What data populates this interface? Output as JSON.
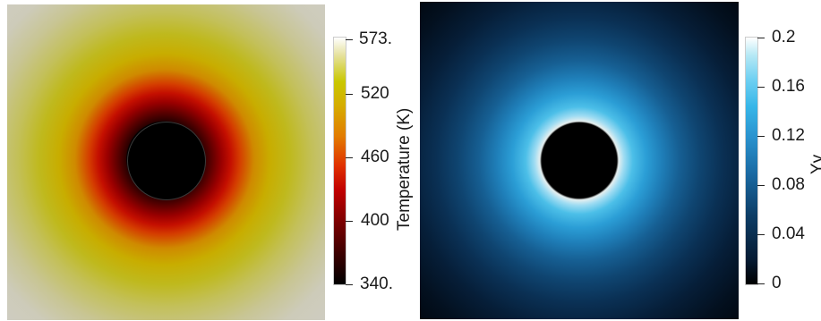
{
  "temperature_plot": {
    "colorbar_title": "Temperature (K)",
    "ticks": [
      "573.",
      "520",
      "460",
      "400",
      "340."
    ],
    "colormap": "black-body"
  },
  "strain_plot": {
    "colorbar_title": "Yy",
    "ticks": [
      "0.2",
      "0.16",
      "0.12",
      "0.08",
      "0.04",
      "0"
    ],
    "colormap": "ice-blue"
  },
  "colors": {
    "temperature_far_field": "#cfcdc3",
    "temperature_hot": "#c8ad00",
    "temperature_near_hole": "#c40f00",
    "strain_near_hole": "#4cbfe8",
    "strain_far_field": "#000205",
    "hole": "#000000"
  }
}
